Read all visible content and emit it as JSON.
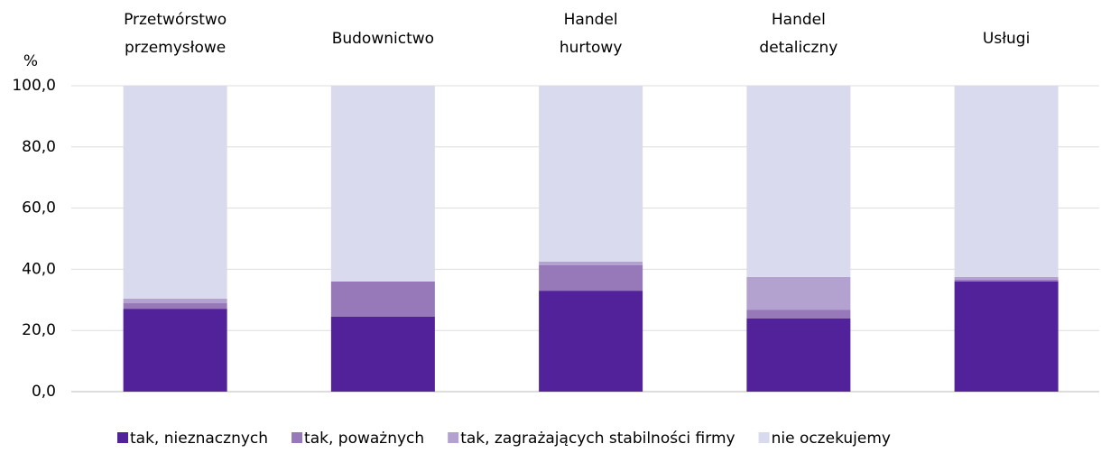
{
  "chart_data": {
    "type": "stacked_bar",
    "y_label": "%",
    "categories": [
      "Przetwórstwo przemysłowe",
      "Budownictwo",
      "Handel hurtowy",
      "Handel detaliczny",
      "Usługi"
    ],
    "series": [
      {
        "name": "tak, nieznacznych",
        "color": "#52229a",
        "values": [
          27.1,
          24.5,
          33.0,
          23.9,
          36.0
        ]
      },
      {
        "name": "tak, poważnych",
        "color": "#9778b8",
        "values": [
          1.8,
          11.5,
          8.3,
          2.9,
          0.6
        ]
      },
      {
        "name": "tak, zagrażających stabilności firmy",
        "color": "#b3a1cf",
        "values": [
          1.5,
          0,
          1.2,
          10.7,
          0.9
        ]
      },
      {
        "name": "nie oczekujemy",
        "color": "#d9daee",
        "values": [
          69.6,
          64.0,
          57.5,
          62.5,
          62.5
        ]
      }
    ],
    "ylim": [
      0,
      100
    ],
    "yticks": [
      {
        "value": 0,
        "label": "0,0"
      },
      {
        "value": 20,
        "label": "20,0"
      },
      {
        "value": 40,
        "label": "40,0"
      },
      {
        "value": 60,
        "label": "60,0"
      },
      {
        "value": 80,
        "label": "80,0"
      },
      {
        "value": 100,
        "label": "100,0"
      }
    ],
    "grid": true
  }
}
